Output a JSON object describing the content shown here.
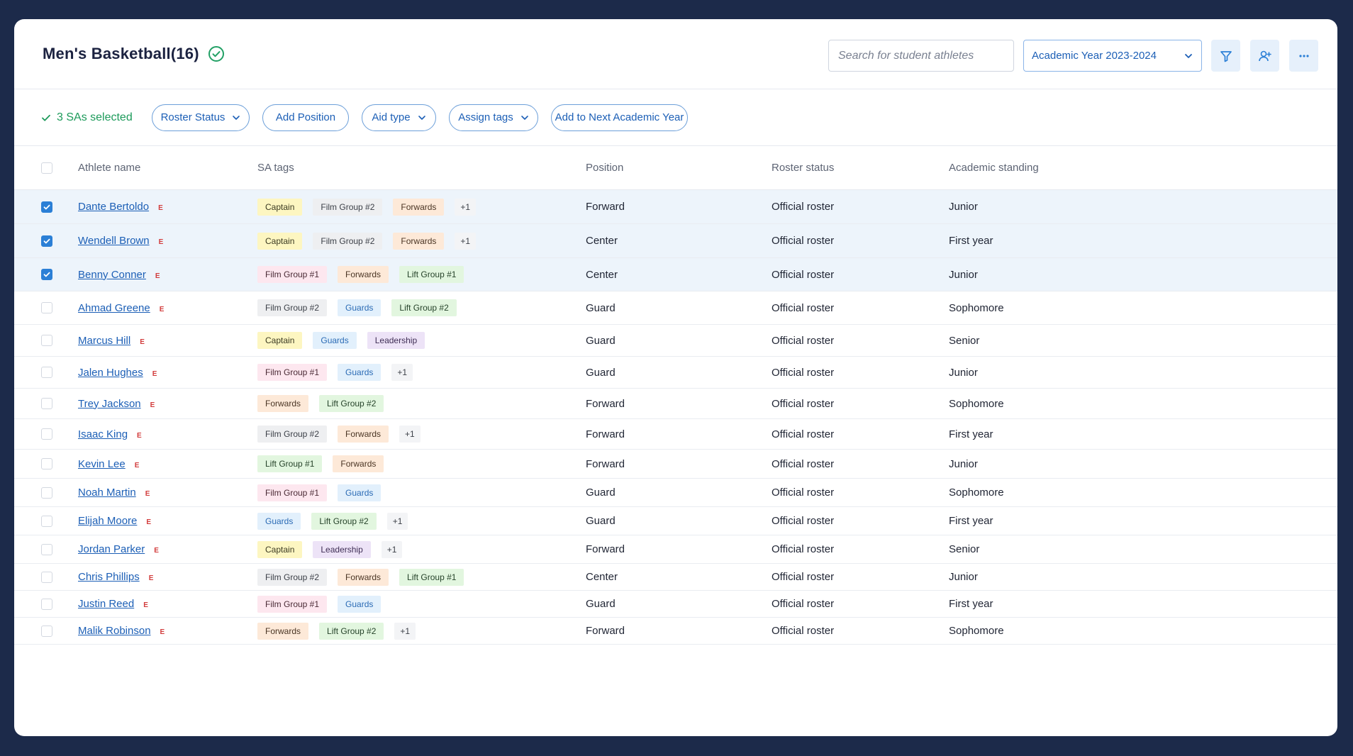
{
  "header": {
    "title": "Men's Basketball(16)",
    "search_placeholder": "Search for student athletes",
    "academic_year": "Academic Year 2023-2024"
  },
  "toolbar": {
    "selected_text": "3 SAs selected",
    "roster_status": "Roster Status",
    "add_position": "Add Position",
    "aid_type": "Aid type",
    "assign_tags": "Assign tags",
    "add_next_year": "Add to Next Academic Year"
  },
  "table": {
    "columns": {
      "name": "Athlete name",
      "tags": "SA tags",
      "position": "Position",
      "roster": "Roster status",
      "academic": "Academic standing"
    },
    "badge_letter": "E",
    "rows": [
      {
        "name": "Dante Bertoldo",
        "selected": true,
        "tags": [
          {
            "label": "Captain",
            "kind": "cap"
          },
          {
            "label": "Film Group #2",
            "kind": "fg2"
          },
          {
            "label": "Forwards",
            "kind": "fwd"
          },
          {
            "label": "+1",
            "kind": "more"
          }
        ],
        "position": "Forward",
        "roster": "Official roster",
        "academic": "Junior"
      },
      {
        "name": "Wendell Brown",
        "selected": true,
        "tags": [
          {
            "label": "Captain",
            "kind": "cap"
          },
          {
            "label": "Film Group #2",
            "kind": "fg2"
          },
          {
            "label": "Forwards",
            "kind": "fwd"
          },
          {
            "label": "+1",
            "kind": "more"
          }
        ],
        "position": "Center",
        "roster": "Official roster",
        "academic": "First year"
      },
      {
        "name": "Benny Conner",
        "selected": true,
        "tags": [
          {
            "label": "Film Group #1",
            "kind": "fg1"
          },
          {
            "label": "Forwards",
            "kind": "fwd"
          },
          {
            "label": "Lift Group #1",
            "kind": "lg1"
          }
        ],
        "position": "Center",
        "roster": "Official roster",
        "academic": "Junior"
      },
      {
        "name": "Ahmad Greene",
        "selected": false,
        "tags": [
          {
            "label": "Film Group #2",
            "kind": "fg2"
          },
          {
            "label": "Guards",
            "kind": "grd"
          },
          {
            "label": "Lift Group #2",
            "kind": "lg2"
          }
        ],
        "position": "Guard",
        "roster": "Official roster",
        "academic": "Sophomore"
      },
      {
        "name": "Marcus Hill",
        "selected": false,
        "tags": [
          {
            "label": "Captain",
            "kind": "cap"
          },
          {
            "label": "Guards",
            "kind": "grd"
          },
          {
            "label": "Leadership",
            "kind": "led"
          }
        ],
        "position": "Guard",
        "roster": "Official roster",
        "academic": "Senior"
      },
      {
        "name": "Jalen Hughes",
        "selected": false,
        "tags": [
          {
            "label": "Film Group #1",
            "kind": "fg1"
          },
          {
            "label": "Guards",
            "kind": "grd"
          },
          {
            "label": "+1",
            "kind": "more"
          }
        ],
        "position": "Guard",
        "roster": "Official roster",
        "academic": "Junior"
      },
      {
        "name": "Trey Jackson",
        "selected": false,
        "tags": [
          {
            "label": "Forwards",
            "kind": "fwd"
          },
          {
            "label": "Lift Group #2",
            "kind": "lg2"
          }
        ],
        "position": "Forward",
        "roster": "Official roster",
        "academic": "Sophomore"
      },
      {
        "name": "Isaac King",
        "selected": false,
        "tags": [
          {
            "label": "Film Group #2",
            "kind": "fg2"
          },
          {
            "label": "Forwards",
            "kind": "fwd"
          },
          {
            "label": "+1",
            "kind": "more"
          }
        ],
        "position": "Forward",
        "roster": "Official roster",
        "academic": "First year"
      },
      {
        "name": "Kevin Lee",
        "selected": false,
        "tags": [
          {
            "label": "Lift Group #1",
            "kind": "lg1"
          },
          {
            "label": "Forwards",
            "kind": "fwd"
          }
        ],
        "position": "Forward",
        "roster": "Official roster",
        "academic": "Junior"
      },
      {
        "name": "Noah Martin",
        "selected": false,
        "tags": [
          {
            "label": "Film Group #1",
            "kind": "fg1"
          },
          {
            "label": "Guards",
            "kind": "grd"
          }
        ],
        "position": "Guard",
        "roster": "Official roster",
        "academic": "Sophomore"
      },
      {
        "name": "Elijah Moore",
        "selected": false,
        "tags": [
          {
            "label": "Guards",
            "kind": "grd"
          },
          {
            "label": "Lift Group #2",
            "kind": "lg2"
          },
          {
            "label": "+1",
            "kind": "more"
          }
        ],
        "position": "Guard",
        "roster": "Official roster",
        "academic": "First year"
      },
      {
        "name": "Jordan Parker",
        "selected": false,
        "tags": [
          {
            "label": "Captain",
            "kind": "cap"
          },
          {
            "label": "Leadership",
            "kind": "led"
          },
          {
            "label": "+1",
            "kind": "more"
          }
        ],
        "position": "Forward",
        "roster": "Official roster",
        "academic": "Senior"
      },
      {
        "name": "Chris Phillips",
        "selected": false,
        "tags": [
          {
            "label": "Film Group #2",
            "kind": "fg2"
          },
          {
            "label": "Forwards",
            "kind": "fwd"
          },
          {
            "label": "Lift Group #1",
            "kind": "lg1"
          }
        ],
        "position": "Center",
        "roster": "Official roster",
        "academic": "Junior"
      },
      {
        "name": "Justin Reed",
        "selected": false,
        "tags": [
          {
            "label": "Film Group #1",
            "kind": "fg1"
          },
          {
            "label": "Guards",
            "kind": "grd"
          }
        ],
        "position": "Guard",
        "roster": "Official roster",
        "academic": "First year"
      },
      {
        "name": "Malik Robinson",
        "selected": false,
        "tags": [
          {
            "label": "Forwards",
            "kind": "fwd"
          },
          {
            "label": "Lift Group #2",
            "kind": "lg2"
          },
          {
            "label": "+1",
            "kind": "more"
          }
        ],
        "position": "Forward",
        "roster": "Official roster",
        "academic": "Sophomore"
      }
    ]
  }
}
